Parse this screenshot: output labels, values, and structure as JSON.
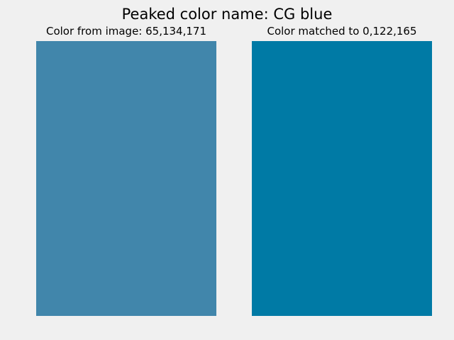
{
  "title": "Peaked color name: CG blue",
  "panels": [
    {
      "label": "Color from image: 65,134,171",
      "color": "#4186ab"
    },
    {
      "label": "Color matched to 0,122,165",
      "color": "#007aa5"
    }
  ]
}
